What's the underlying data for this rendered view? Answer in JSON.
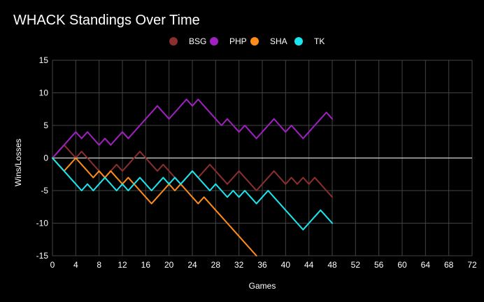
{
  "chart_data": {
    "type": "line",
    "title": "WHACK Standings Over Time",
    "xlabel": "Games",
    "ylabel": "Wins/Losses",
    "xlim": [
      0,
      72
    ],
    "ylim": [
      -15,
      15
    ],
    "x_ticks": [
      0,
      4,
      8,
      12,
      16,
      20,
      24,
      28,
      32,
      36,
      40,
      44,
      48,
      52,
      56,
      60,
      64,
      68,
      72
    ],
    "y_ticks": [
      15,
      10,
      5,
      0,
      -5,
      -10,
      -15
    ],
    "legend_position": "top-center",
    "series": [
      {
        "name": "BSG",
        "color": "#8b2e2e",
        "values": [
          0,
          1,
          2,
          1,
          0,
          1,
          0,
          -1,
          -2,
          -3,
          -2,
          -1,
          -2,
          -1,
          0,
          1,
          0,
          -1,
          -2,
          -1,
          -2,
          -3,
          -4,
          -3,
          -2,
          -3,
          -2,
          -1,
          -2,
          -3,
          -4,
          -3,
          -2,
          -3,
          -4,
          -5,
          -4,
          -3,
          -2,
          -3,
          -4,
          -3,
          -4,
          -3,
          -4,
          -3,
          -4,
          -5,
          -6
        ]
      },
      {
        "name": "PHP",
        "color": "#a020c0",
        "values": [
          0,
          1,
          2,
          3,
          4,
          3,
          4,
          3,
          2,
          3,
          2,
          3,
          4,
          3,
          4,
          5,
          6,
          7,
          8,
          7,
          6,
          7,
          8,
          9,
          8,
          9,
          8,
          7,
          6,
          5,
          6,
          5,
          4,
          5,
          4,
          3,
          4,
          5,
          6,
          5,
          4,
          5,
          4,
          3,
          4,
          5,
          6,
          7,
          6
        ]
      },
      {
        "name": "SHA",
        "color": "#ff8c1a",
        "values": [
          0,
          -1,
          -2,
          -1,
          0,
          -1,
          -2,
          -3,
          -2,
          -3,
          -2,
          -3,
          -4,
          -3,
          -4,
          -5,
          -6,
          -7,
          -6,
          -5,
          -4,
          -5,
          -4,
          -5,
          -6,
          -7,
          -6,
          -7,
          -8,
          -9,
          -10,
          -11,
          -12,
          -13,
          -14,
          -15
        ]
      },
      {
        "name": "TK",
        "color": "#1ae6f0",
        "values": [
          0,
          -1,
          -2,
          -3,
          -4,
          -5,
          -4,
          -5,
          -4,
          -3,
          -4,
          -5,
          -4,
          -5,
          -4,
          -3,
          -4,
          -5,
          -4,
          -3,
          -4,
          -3,
          -4,
          -3,
          -2,
          -3,
          -4,
          -5,
          -4,
          -5,
          -6,
          -5,
          -6,
          -5,
          -6,
          -7,
          -6,
          -5,
          -6,
          -7,
          -8,
          -9,
          -10,
          -11,
          -10,
          -9,
          -8,
          -9,
          -10
        ]
      }
    ]
  }
}
